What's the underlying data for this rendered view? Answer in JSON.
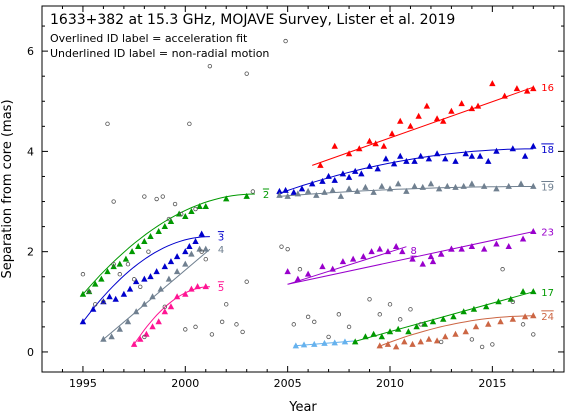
{
  "info": {
    "title": "1633+382 at 15.3 GHz, MOJAVE Survey, Lister et al. 2019",
    "note1": "Overlined ID label = acceleration fit",
    "note2": "Underlined ID label = non-radial motion"
  },
  "chart_data": {
    "type": "scatter",
    "title": "1633+382 at 15.3 GHz, MOJAVE Survey, Lister et al. 2019",
    "xlabel": "Year",
    "ylabel": "Separation from core (mas)",
    "xlim": [
      1993,
      2018.5
    ],
    "ylim": [
      -0.4,
      6.9
    ],
    "xticks": [
      1995,
      2000,
      2005,
      2010,
      2015
    ],
    "yticks": [
      0,
      2,
      4,
      6
    ],
    "grid": false,
    "series": [
      {
        "label": "16",
        "label_style": "plain",
        "color": "#ff0000",
        "fit": [
          [
            2006.2,
            3.72
          ],
          [
            2017.0,
            5.28
          ]
        ],
        "x": [
          2006.6,
          2007.3,
          2008.0,
          2008.5,
          2009.0,
          2009.3,
          2009.7,
          2010.1,
          2010.5,
          2011.0,
          2011.4,
          2011.8,
          2012.3,
          2012.6,
          2013.0,
          2013.5,
          2014.0,
          2014.3,
          2015.0,
          2015.6,
          2016.2,
          2016.7,
          2017.0
        ],
        "y": [
          3.72,
          4.1,
          3.95,
          4.05,
          4.2,
          4.15,
          4.1,
          4.35,
          4.6,
          4.5,
          4.7,
          4.9,
          4.65,
          4.6,
          4.8,
          4.95,
          4.85,
          4.9,
          5.35,
          5.1,
          5.25,
          5.2,
          5.25
        ]
      },
      {
        "label": "18",
        "label_style": "overline",
        "color": "#0000cc",
        "fit": "accel",
        "fit_x": [
          2004.5,
          2017.0
        ],
        "fit_y": [
          3.15,
          4.05
        ],
        "x": [
          2004.6,
          2004.9,
          2005.3,
          2005.7,
          2006.2,
          2006.7,
          2007.0,
          2007.3,
          2007.7,
          2008.0,
          2008.3,
          2008.6,
          2009.0,
          2009.4,
          2009.8,
          2010.2,
          2010.5,
          2010.8,
          2011.2,
          2011.5,
          2011.9,
          2012.3,
          2012.7,
          2013.2,
          2013.7,
          2014.0,
          2014.4,
          2014.8,
          2015.2,
          2016.0,
          2016.6,
          2017.0
        ],
        "y": [
          3.2,
          3.22,
          3.18,
          3.25,
          3.35,
          3.4,
          3.5,
          3.42,
          3.55,
          3.48,
          3.6,
          3.55,
          3.7,
          3.65,
          3.85,
          3.75,
          3.9,
          3.8,
          3.8,
          3.9,
          3.85,
          3.95,
          3.85,
          3.8,
          3.95,
          3.9,
          3.9,
          3.8,
          4.0,
          4.05,
          3.9,
          4.1
        ]
      },
      {
        "label": "19",
        "label_style": "overline",
        "color": "#708090",
        "fit": "accel",
        "fit_x": [
          2004.5,
          2017.0
        ],
        "fit_y": [
          3.1,
          3.3
        ],
        "x": [
          2004.6,
          2005.0,
          2005.5,
          2006.0,
          2006.4,
          2006.8,
          2007.2,
          2007.6,
          2008.0,
          2008.4,
          2008.8,
          2009.2,
          2009.6,
          2010.0,
          2010.4,
          2010.8,
          2011.2,
          2011.6,
          2012.0,
          2012.4,
          2012.8,
          2013.2,
          2013.6,
          2014.0,
          2014.6,
          2015.2,
          2015.8,
          2016.4,
          2017.0
        ],
        "y": [
          3.12,
          3.1,
          3.15,
          3.2,
          3.12,
          3.18,
          3.22,
          3.1,
          3.25,
          3.2,
          3.28,
          3.18,
          3.3,
          3.25,
          3.35,
          3.2,
          3.3,
          3.28,
          3.35,
          3.25,
          3.3,
          3.28,
          3.3,
          3.35,
          3.3,
          3.25,
          3.3,
          3.35,
          3.3
        ]
      },
      {
        "label": "23",
        "label_style": "plain",
        "color": "#9900cc",
        "fit": [
          [
            2005.0,
            1.35
          ],
          [
            2017.0,
            2.4
          ]
        ],
        "x": [
          2005.0,
          2005.5,
          2006.0,
          2006.7,
          2007.2,
          2007.7,
          2008.2,
          2008.7,
          2009.1,
          2009.5,
          2009.9,
          2010.3,
          2010.6,
          2011.1,
          2011.6,
          2012.1,
          2012.5,
          2013.0,
          2013.5,
          2014.0,
          2014.6,
          2015.2,
          2015.8,
          2016.5,
          2017.0
        ],
        "y": [
          1.6,
          1.45,
          1.55,
          1.7,
          1.65,
          1.8,
          1.85,
          1.9,
          2.0,
          2.05,
          2.0,
          2.1,
          2.0,
          1.85,
          1.75,
          1.8,
          1.95,
          2.05,
          2.05,
          2.1,
          2.05,
          2.15,
          2.1,
          2.25,
          2.4
        ]
      },
      {
        "label": "8",
        "label_style": "underline",
        "color": "#9900cc",
        "fit": [
          [
            2005.0,
            1.35
          ],
          [
            2010.8,
            2.1
          ]
        ],
        "x": [
          2012.0,
          2012.5,
          2013.0
        ],
        "y": [
          1.9,
          1.95,
          2.05
        ]
      },
      {
        "label": "17",
        "label_style": "plain",
        "color": "#009900",
        "fit": [
          [
            2008.2,
            0.2
          ],
          [
            2017.0,
            1.2
          ]
        ],
        "x": [
          2008.3,
          2008.8,
          2009.2,
          2009.6,
          2010.0,
          2010.4,
          2010.9,
          2011.3,
          2011.7,
          2012.1,
          2012.6,
          2013.1,
          2013.6,
          2014.1,
          2014.7,
          2015.3,
          2015.9,
          2016.5,
          2017.0
        ],
        "y": [
          0.2,
          0.3,
          0.35,
          0.3,
          0.4,
          0.45,
          0.4,
          0.5,
          0.55,
          0.6,
          0.65,
          0.7,
          0.8,
          0.85,
          0.9,
          1.0,
          1.05,
          1.2,
          1.2
        ]
      },
      {
        "label": "24",
        "label_style": "overline",
        "color": "#cc6644",
        "fit": "accel",
        "fit_x": [
          2009.4,
          2017.0
        ],
        "fit_y": [
          0.1,
          0.72
        ],
        "x": [
          2009.5,
          2009.9,
          2010.3,
          2010.7,
          2011.1,
          2011.5,
          2011.9,
          2012.3,
          2012.7,
          2013.2,
          2013.7,
          2014.2,
          2014.8,
          2015.4,
          2016.0,
          2016.6,
          2017.0
        ],
        "y": [
          0.12,
          0.15,
          0.1,
          0.2,
          0.15,
          0.2,
          0.25,
          0.22,
          0.3,
          0.35,
          0.4,
          0.5,
          0.55,
          0.6,
          0.65,
          0.7,
          0.72
        ]
      },
      {
        "label": "",
        "label_style": "plain",
        "color": "#66b2ee",
        "fit": [
          [
            2005.3,
            0.12
          ],
          [
            2008.3,
            0.22
          ]
        ],
        "x": [
          2005.4,
          2005.8,
          2006.3,
          2006.8,
          2007.3,
          2007.8
        ],
        "y": [
          0.12,
          0.14,
          0.15,
          0.17,
          0.18,
          0.2
        ]
      },
      {
        "label": "2",
        "label_style": "overline",
        "color": "#009900",
        "fit": "accel",
        "fit_x": [
          1995.0,
          2003.4
        ],
        "fit_y": [
          1.15,
          3.15
        ],
        "x": [
          1995.0,
          1995.3,
          1995.6,
          1995.9,
          1996.2,
          1996.5,
          1996.8,
          1997.1,
          1997.4,
          1997.7,
          1998.0,
          1998.3,
          1998.7,
          1999.0,
          1999.3,
          1999.7,
          2000.0,
          2000.3,
          2000.7,
          2001.0,
          2002.0,
          2003.0
        ],
        "y": [
          1.15,
          1.2,
          1.35,
          1.45,
          1.6,
          1.7,
          1.75,
          1.85,
          2.0,
          2.1,
          2.2,
          2.3,
          2.4,
          2.5,
          2.6,
          2.75,
          2.7,
          2.8,
          2.9,
          2.9,
          3.05,
          3.1
        ]
      },
      {
        "label": "3",
        "label_style": "overline",
        "color": "#0000cc",
        "fit": "accel",
        "fit_x": [
          1995.0,
          2001.2
        ],
        "fit_y": [
          0.6,
          2.3
        ],
        "x": [
          1995.0,
          1995.5,
          1996.0,
          1996.3,
          1996.6,
          1997.0,
          1997.3,
          1997.6,
          1998.0,
          1998.3,
          1998.6,
          1999.0,
          1999.3,
          1999.6,
          2000.0,
          2000.2,
          2000.5,
          2000.8
        ],
        "y": [
          0.6,
          0.85,
          1.0,
          1.1,
          1.05,
          1.15,
          1.25,
          1.4,
          1.45,
          1.5,
          1.6,
          1.7,
          1.8,
          1.9,
          2.0,
          2.1,
          2.2,
          2.35
        ]
      },
      {
        "label": "4",
        "label_style": "plain",
        "color": "#708090",
        "fit": [
          [
            1996.0,
            0.25
          ],
          [
            2001.2,
            2.05
          ]
        ],
        "x": [
          1996.0,
          1996.4,
          1996.8,
          1997.2,
          1997.6,
          1998.0,
          1998.4,
          1998.8,
          1999.2,
          1999.6,
          2000.0,
          2000.3,
          2000.7,
          2001.0
        ],
        "y": [
          0.25,
          0.3,
          0.45,
          0.6,
          0.8,
          0.95,
          1.1,
          1.25,
          1.45,
          1.6,
          1.75,
          1.95,
          2.05,
          2.05
        ]
      },
      {
        "label": "5",
        "label_style": "overline",
        "color": "#ff1493",
        "fit": "accel",
        "fit_x": [
          1997.5,
          2001.2
        ],
        "fit_y": [
          0.15,
          1.3
        ],
        "x": [
          1997.5,
          1997.8,
          1998.1,
          1998.4,
          1998.7,
          1999.0,
          1999.3,
          1999.6,
          2000.0,
          2000.3,
          2000.6,
          2001.0
        ],
        "y": [
          0.15,
          0.25,
          0.35,
          0.5,
          0.6,
          0.8,
          0.9,
          1.1,
          1.15,
          1.25,
          1.3,
          1.3
        ]
      },
      {
        "label": "",
        "label_style": "plain",
        "color": "#555555",
        "open": true,
        "x": [
          1995.0,
          1995.3,
          1995.6,
          1996.0,
          1996.2,
          1996.5,
          1996.8,
          1997.2,
          1997.5,
          1997.8,
          1998.0,
          1998.2,
          1998.6,
          1998.9,
          1999.2,
          1999.5,
          1999.8,
          2000.0,
          2000.2,
          2000.5,
          2000.8,
          2001.0,
          2001.2,
          2002.0,
          2002.5,
          2002.8,
          2003.0,
          2003.3,
          2004.7,
          2005.0,
          2005.3,
          2005.6,
          2006.0,
          2006.3,
          2007.0,
          2007.5,
          2008.0,
          2009.0,
          2009.5,
          2010.0,
          2010.5,
          2011.0,
          2011.5,
          2012.5,
          2014.0,
          2014.5,
          2015.0,
          2015.5,
          2016.0,
          2016.5,
          2017.0,
          1996.5,
          1998.0,
          1999.0,
          2000.5,
          2001.3,
          2001.8,
          2003.0,
          2004.9
        ],
        "y": [
          1.55,
          1.2,
          0.95,
          1.0,
          4.55,
          1.75,
          1.55,
          1.75,
          1.45,
          1.3,
          3.1,
          2.0,
          3.05,
          3.1,
          2.65,
          2.95,
          2.75,
          0.45,
          4.55,
          2.85,
          2.0,
          1.85,
          5.7,
          0.95,
          0.55,
          0.4,
          5.55,
          3.2,
          2.1,
          2.05,
          0.55,
          1.65,
          0.7,
          0.6,
          0.3,
          0.75,
          0.5,
          1.05,
          0.75,
          0.95,
          0.65,
          0.85,
          0.55,
          0.2,
          0.25,
          0.1,
          0.15,
          1.65,
          1.0,
          0.55,
          0.35,
          3.0,
          0.3,
          0.9,
          0.5,
          0.35,
          0.6,
          1.4,
          6.2
        ]
      }
    ]
  }
}
